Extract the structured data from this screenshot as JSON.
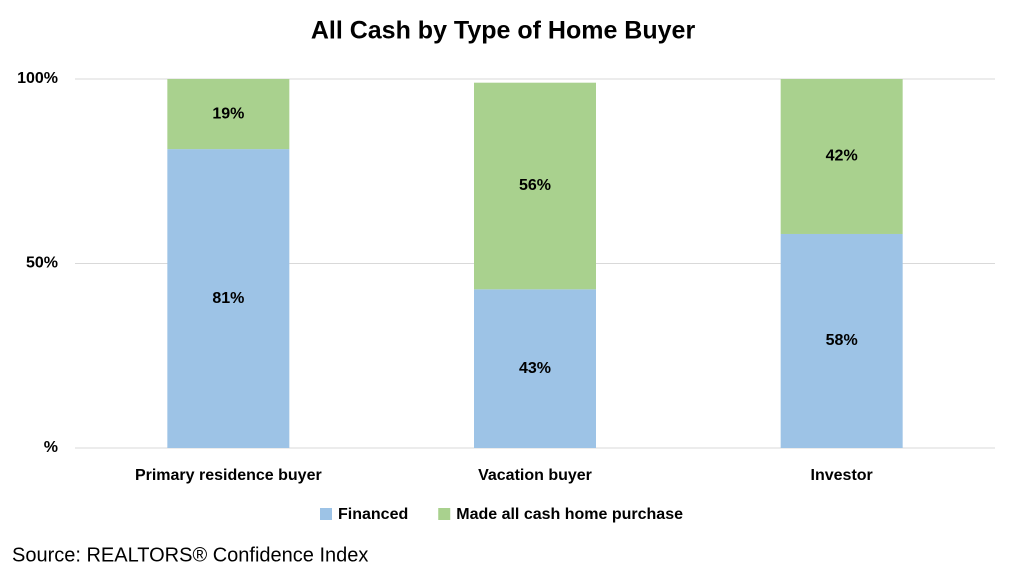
{
  "chart_data": {
    "type": "stacked_bar",
    "title": "All Cash by Type of Home Buyer",
    "categories": [
      "Primary residence buyer",
      "Vacation buyer",
      "Investor"
    ],
    "series": [
      {
        "name": "Financed",
        "color": "#9dc3e6",
        "values": [
          81,
          43,
          58
        ],
        "value_labels": [
          "81%",
          "43%",
          "58%"
        ]
      },
      {
        "name": "Made all cash home purchase",
        "color": "#a9d18e",
        "values": [
          19,
          56,
          42
        ],
        "value_labels": [
          "19%",
          "56%",
          "42%"
        ]
      }
    ],
    "ylim": [
      0,
      100
    ],
    "yticks": [
      {
        "value": 0,
        "label": "%"
      },
      {
        "value": 50,
        "label": "50%"
      },
      {
        "value": 100,
        "label": "100%"
      }
    ],
    "grid": true,
    "legend": "bottom",
    "source": "Source: REALTORS® Confidence Index"
  }
}
